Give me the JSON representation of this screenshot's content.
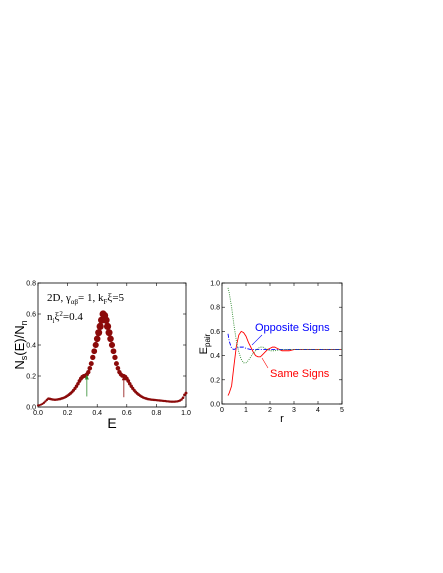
{
  "chart_data": [
    {
      "type": "scatter",
      "xlabel": "E",
      "ylabel_main": "N",
      "ylabel_sub1": "s",
      "ylabel_mid": "(E)/N",
      "ylabel_sub2": "n",
      "xlim": [
        0.0,
        1.0
      ],
      "ylim": [
        0.0,
        0.8
      ],
      "xticks": [
        "0.0",
        "0.2",
        "0.4",
        "0.6",
        "0.8",
        "1.0"
      ],
      "yticks": [
        "0.0",
        "0.2",
        "0.4",
        "0.6",
        "0.8"
      ],
      "annotation_line1": {
        "pre": "2D, γ",
        "sub1": "αβ",
        "mid": "= 1, k",
        "sub2": "F",
        "post": "ξ=5"
      },
      "annotation_line2": {
        "pre": "n",
        "sub": "i",
        "mid": "ξ",
        "sup": "2",
        "post": "=0.4"
      },
      "marker_color": "#8b0a0a",
      "points": [
        [
          0.0,
          0.01
        ],
        [
          0.01,
          0.012
        ],
        [
          0.02,
          0.015
        ],
        [
          0.03,
          0.02
        ],
        [
          0.04,
          0.027
        ],
        [
          0.05,
          0.036
        ],
        [
          0.06,
          0.046
        ],
        [
          0.07,
          0.054
        ],
        [
          0.08,
          0.053
        ],
        [
          0.09,
          0.05
        ],
        [
          0.1,
          0.048
        ],
        [
          0.11,
          0.047
        ],
        [
          0.12,
          0.047
        ],
        [
          0.13,
          0.048
        ],
        [
          0.14,
          0.05
        ],
        [
          0.15,
          0.052
        ],
        [
          0.16,
          0.055
        ],
        [
          0.17,
          0.058
        ],
        [
          0.18,
          0.062
        ],
        [
          0.19,
          0.067
        ],
        [
          0.2,
          0.073
        ],
        [
          0.21,
          0.08
        ],
        [
          0.22,
          0.088
        ],
        [
          0.23,
          0.097
        ],
        [
          0.24,
          0.108
        ],
        [
          0.25,
          0.12
        ],
        [
          0.26,
          0.134
        ],
        [
          0.27,
          0.15
        ],
        [
          0.28,
          0.168
        ],
        [
          0.29,
          0.183
        ],
        [
          0.3,
          0.194
        ],
        [
          0.31,
          0.2
        ],
        [
          0.32,
          0.202
        ],
        [
          0.33,
          0.21
        ],
        [
          0.34,
          0.225
        ],
        [
          0.35,
          0.25
        ],
        [
          0.36,
          0.28
        ],
        [
          0.37,
          0.32
        ],
        [
          0.38,
          0.36
        ],
        [
          0.39,
          0.4
        ],
        [
          0.4,
          0.44
        ],
        [
          0.41,
          0.48
        ],
        [
          0.42,
          0.52
        ],
        [
          0.43,
          0.56
        ],
        [
          0.44,
          0.6
        ],
        [
          0.45,
          0.59
        ],
        [
          0.46,
          0.56
        ],
        [
          0.47,
          0.52
        ],
        [
          0.48,
          0.48
        ],
        [
          0.49,
          0.44
        ],
        [
          0.5,
          0.4
        ],
        [
          0.51,
          0.36
        ],
        [
          0.52,
          0.32
        ],
        [
          0.53,
          0.28
        ],
        [
          0.54,
          0.25
        ],
        [
          0.55,
          0.225
        ],
        [
          0.56,
          0.21
        ],
        [
          0.57,
          0.202
        ],
        [
          0.58,
          0.2
        ],
        [
          0.59,
          0.194
        ],
        [
          0.6,
          0.183
        ],
        [
          0.61,
          0.168
        ],
        [
          0.62,
          0.15
        ],
        [
          0.63,
          0.134
        ],
        [
          0.64,
          0.12
        ],
        [
          0.65,
          0.108
        ],
        [
          0.66,
          0.097
        ],
        [
          0.67,
          0.088
        ],
        [
          0.68,
          0.08
        ],
        [
          0.69,
          0.073
        ],
        [
          0.7,
          0.067
        ],
        [
          0.71,
          0.062
        ],
        [
          0.72,
          0.058
        ],
        [
          0.73,
          0.055
        ],
        [
          0.74,
          0.052
        ],
        [
          0.75,
          0.05
        ],
        [
          0.76,
          0.048
        ],
        [
          0.77,
          0.047
        ],
        [
          0.78,
          0.046
        ],
        [
          0.79,
          0.045
        ],
        [
          0.8,
          0.044
        ],
        [
          0.81,
          0.043
        ],
        [
          0.82,
          0.042
        ],
        [
          0.83,
          0.041
        ],
        [
          0.84,
          0.04
        ],
        [
          0.85,
          0.039
        ],
        [
          0.86,
          0.038
        ],
        [
          0.87,
          0.037
        ],
        [
          0.88,
          0.036
        ],
        [
          0.89,
          0.035
        ],
        [
          0.9,
          0.034
        ],
        [
          0.91,
          0.034
        ],
        [
          0.92,
          0.034
        ],
        [
          0.93,
          0.035
        ],
        [
          0.94,
          0.036
        ],
        [
          0.95,
          0.038
        ],
        [
          0.96,
          0.042
        ],
        [
          0.97,
          0.048
        ],
        [
          0.98,
          0.06
        ],
        [
          0.99,
          0.078
        ],
        [
          1.0,
          0.09
        ]
      ],
      "arrows": [
        {
          "x_tip": 0.33,
          "y_tip": 0.21,
          "color": "#2e8b2e"
        },
        {
          "x_tip": 0.58,
          "y_tip": 0.205,
          "color": "#8b0a0a"
        }
      ]
    },
    {
      "type": "line",
      "xlabel": "r",
      "ylabel_main": "E",
      "ylabel_sub": "pair",
      "xlim": [
        0,
        5
      ],
      "ylim": [
        0.0,
        1.0
      ],
      "xticks": [
        "0",
        "1",
        "2",
        "3",
        "4",
        "5"
      ],
      "yticks": [
        "0.0",
        "0.2",
        "0.4",
        "0.6",
        "0.8",
        "1.0"
      ],
      "series": [
        {
          "name": "Same Signs",
          "color": "#ff0000",
          "style": "solid",
          "points": [
            [
              0.25,
              0.07
            ],
            [
              0.3,
              0.09
            ],
            [
              0.4,
              0.15
            ],
            [
              0.5,
              0.32
            ],
            [
              0.6,
              0.48
            ],
            [
              0.7,
              0.57
            ],
            [
              0.8,
              0.6
            ],
            [
              0.9,
              0.59
            ],
            [
              1.0,
              0.56
            ],
            [
              1.1,
              0.51
            ],
            [
              1.2,
              0.47
            ],
            [
              1.3,
              0.43
            ],
            [
              1.4,
              0.4
            ],
            [
              1.5,
              0.39
            ],
            [
              1.6,
              0.39
            ],
            [
              1.7,
              0.41
            ],
            [
              1.8,
              0.43
            ],
            [
              1.9,
              0.45
            ],
            [
              2.0,
              0.46
            ],
            [
              2.1,
              0.47
            ],
            [
              2.2,
              0.47
            ],
            [
              2.3,
              0.46
            ],
            [
              2.4,
              0.45
            ],
            [
              2.5,
              0.44
            ],
            [
              2.6,
              0.44
            ],
            [
              2.8,
              0.44
            ],
            [
              3.0,
              0.45
            ],
            [
              3.2,
              0.45
            ],
            [
              3.5,
              0.45
            ],
            [
              4.0,
              0.45
            ],
            [
              4.5,
              0.45
            ],
            [
              5.0,
              0.45
            ]
          ]
        },
        {
          "name": "Opposite Signs",
          "color": "#0000ff",
          "style": "dashdot",
          "points": [
            [
              0.25,
              0.58
            ],
            [
              0.3,
              0.52
            ],
            [
              0.4,
              0.46
            ],
            [
              0.5,
              0.45
            ],
            [
              0.6,
              0.46
            ],
            [
              0.7,
              0.47
            ],
            [
              0.8,
              0.47
            ],
            [
              0.9,
              0.47
            ],
            [
              1.0,
              0.46
            ],
            [
              1.2,
              0.45
            ],
            [
              1.5,
              0.45
            ],
            [
              2.0,
              0.45
            ],
            [
              2.5,
              0.45
            ],
            [
              3.0,
              0.45
            ],
            [
              3.5,
              0.45
            ],
            [
              4.0,
              0.45
            ],
            [
              4.5,
              0.45
            ],
            [
              5.0,
              0.45
            ]
          ]
        },
        {
          "name": "",
          "color": "#2e8b2e",
          "style": "dotted",
          "points": [
            [
              0.25,
              0.96
            ],
            [
              0.3,
              0.92
            ],
            [
              0.4,
              0.8
            ],
            [
              0.5,
              0.65
            ],
            [
              0.6,
              0.52
            ],
            [
              0.7,
              0.43
            ],
            [
              0.8,
              0.37
            ],
            [
              0.9,
              0.34
            ],
            [
              1.0,
              0.34
            ],
            [
              1.1,
              0.36
            ],
            [
              1.2,
              0.39
            ],
            [
              1.3,
              0.42
            ],
            [
              1.4,
              0.44
            ],
            [
              1.5,
              0.46
            ],
            [
              1.6,
              0.47
            ],
            [
              1.7,
              0.47
            ],
            [
              1.8,
              0.46
            ],
            [
              1.9,
              0.45
            ],
            [
              2.0,
              0.44
            ],
            [
              2.2,
              0.44
            ],
            [
              2.5,
              0.45
            ],
            [
              3.0,
              0.45
            ],
            [
              4.0,
              0.45
            ],
            [
              5.0,
              0.45
            ]
          ]
        }
      ],
      "labels": {
        "opposite": "Opposite Signs",
        "same": "Same Signs"
      },
      "label_colors": {
        "opposite": "#0000ff",
        "same": "#ff0000"
      }
    }
  ]
}
